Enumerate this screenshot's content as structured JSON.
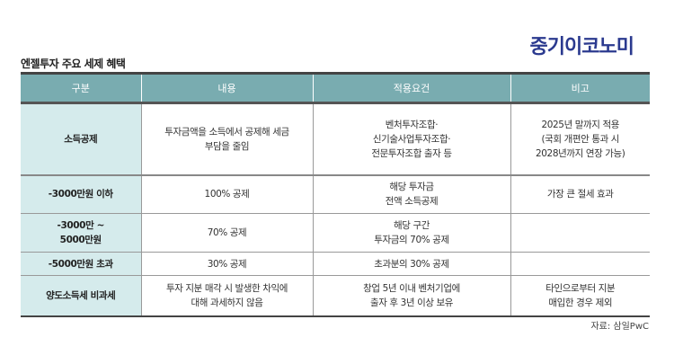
{
  "logo": "중기이코노미",
  "title": "엔젤투자 주요 세제 혜택",
  "table": {
    "headers": [
      "구분",
      "내용",
      "적용요건",
      "비고"
    ],
    "rows": [
      {
        "c0": "소득공제",
        "c1": [
          "투자금액을 소득에서 공제해 세금",
          "부담을 줄임"
        ],
        "c2": [
          "벤처투자조합·",
          "신기술사업투자조합·",
          "전문투자조합 출자 등"
        ],
        "c3": [
          "2025년 말까지 적용",
          "(국회 개편안 통과 시",
          "2028년까지 연장 가능)"
        ]
      },
      {
        "c0": [
          "-3000만원 이하"
        ],
        "c1": [
          "100% 공제"
        ],
        "c2": [
          "해당 투자금",
          "전액 소득공제"
        ],
        "c3": [
          "가장 큰 절세 효과"
        ]
      },
      {
        "c0": [
          "-3000만 ~",
          "5000만원"
        ],
        "c1": [
          "70% 공제"
        ],
        "c2": [
          "해당 구간",
          "투자금의 70% 공제"
        ],
        "c3": [
          ""
        ]
      },
      {
        "c0": [
          "-5000만원 초과"
        ],
        "c1": [
          "30% 공제"
        ],
        "c2": [
          "초과분의 30% 공제"
        ],
        "c3": [
          ""
        ]
      },
      {
        "c0": [
          "양도소득세 비과세"
        ],
        "c1": [
          "투자 지분 매각 시 발생한 차익에",
          "대해 과세하지 않음"
        ],
        "c2": [
          "창업 5년 이내 벤처기업에",
          "출자 후 3년 이상 보유"
        ],
        "c3": [
          "타인으로부터 지분",
          "매입한 경우 제외"
        ]
      }
    ]
  },
  "source": "자료: 삼일PwC",
  "colors": {
    "header": "#79acb0",
    "first_col": "#d5ebec",
    "logo": "#2b3a8f"
  }
}
